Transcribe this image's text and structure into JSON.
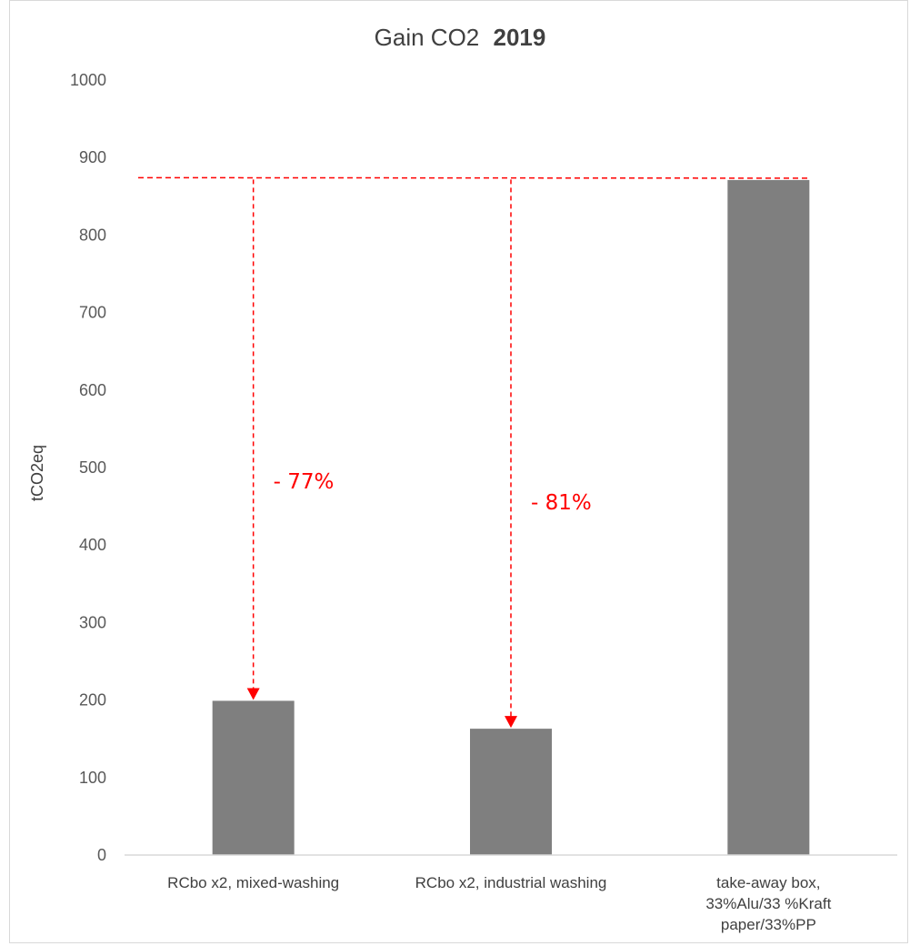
{
  "chart_data": {
    "type": "bar",
    "title": {
      "prefix": "Gain CO2",
      "emphasis": "2019"
    },
    "ylabel": "tCO2eq",
    "xlabel": "",
    "ylim": [
      0,
      1000
    ],
    "yticks": [
      0,
      100,
      200,
      300,
      400,
      500,
      600,
      700,
      800,
      900,
      1000
    ],
    "ytick_labels": [
      "0",
      "100",
      "200",
      "300",
      "400",
      "500",
      "600",
      "700",
      "800",
      "900",
      "1000"
    ],
    "categories": [
      [
        "RCbo x2, mixed-washing"
      ],
      [
        "RCbo x2, industrial washing"
      ],
      [
        "take-away box,",
        "33%Alu/33 %Kraft",
        "paper/33%PP"
      ]
    ],
    "values": [
      199,
      163,
      871
    ],
    "bar_color": "#7f7f7f",
    "grid": false,
    "legend": "none",
    "annotations": [
      {
        "category_index": 0,
        "text": "- 77%"
      },
      {
        "category_index": 1,
        "text": "- 81%"
      }
    ],
    "reference_line": {
      "value": 874,
      "color": "#ff0000",
      "style": "dashed"
    },
    "annotation_color": "#ff0000"
  }
}
